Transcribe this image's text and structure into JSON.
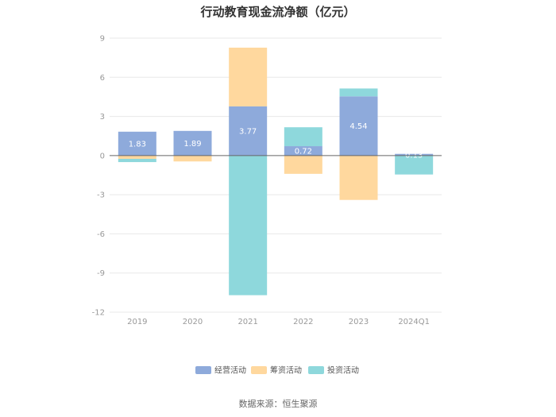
{
  "title": "行动教育现金流净额（亿元）",
  "source": "数据来源：恒生聚源",
  "chart_data": {
    "type": "bar",
    "stacked": true,
    "categories": [
      "2019",
      "2020",
      "2021",
      "2022",
      "2023",
      "2024Q1"
    ],
    "ylim": [
      -12,
      9
    ],
    "yticks": [
      9,
      6,
      3,
      0,
      -3,
      -6,
      -9,
      -12
    ],
    "grid": true,
    "legend_position": "bottom",
    "series": [
      {
        "name": "经营活动",
        "color": "#8eaadb",
        "values": [
          1.83,
          1.89,
          3.77,
          0.72,
          4.54,
          0.13
        ],
        "labels": [
          "1.83",
          "1.89",
          "3.77",
          "0.72",
          "4.54",
          "0.13"
        ]
      },
      {
        "name": "筹资活动",
        "color": "#ffd89e",
        "values": [
          -0.25,
          -0.45,
          4.5,
          -1.4,
          -3.4,
          0.0
        ]
      },
      {
        "name": "投资活动",
        "color": "#8ed8dc",
        "values": [
          -0.25,
          0.0,
          -10.7,
          1.45,
          0.6,
          -1.45
        ]
      }
    ]
  }
}
